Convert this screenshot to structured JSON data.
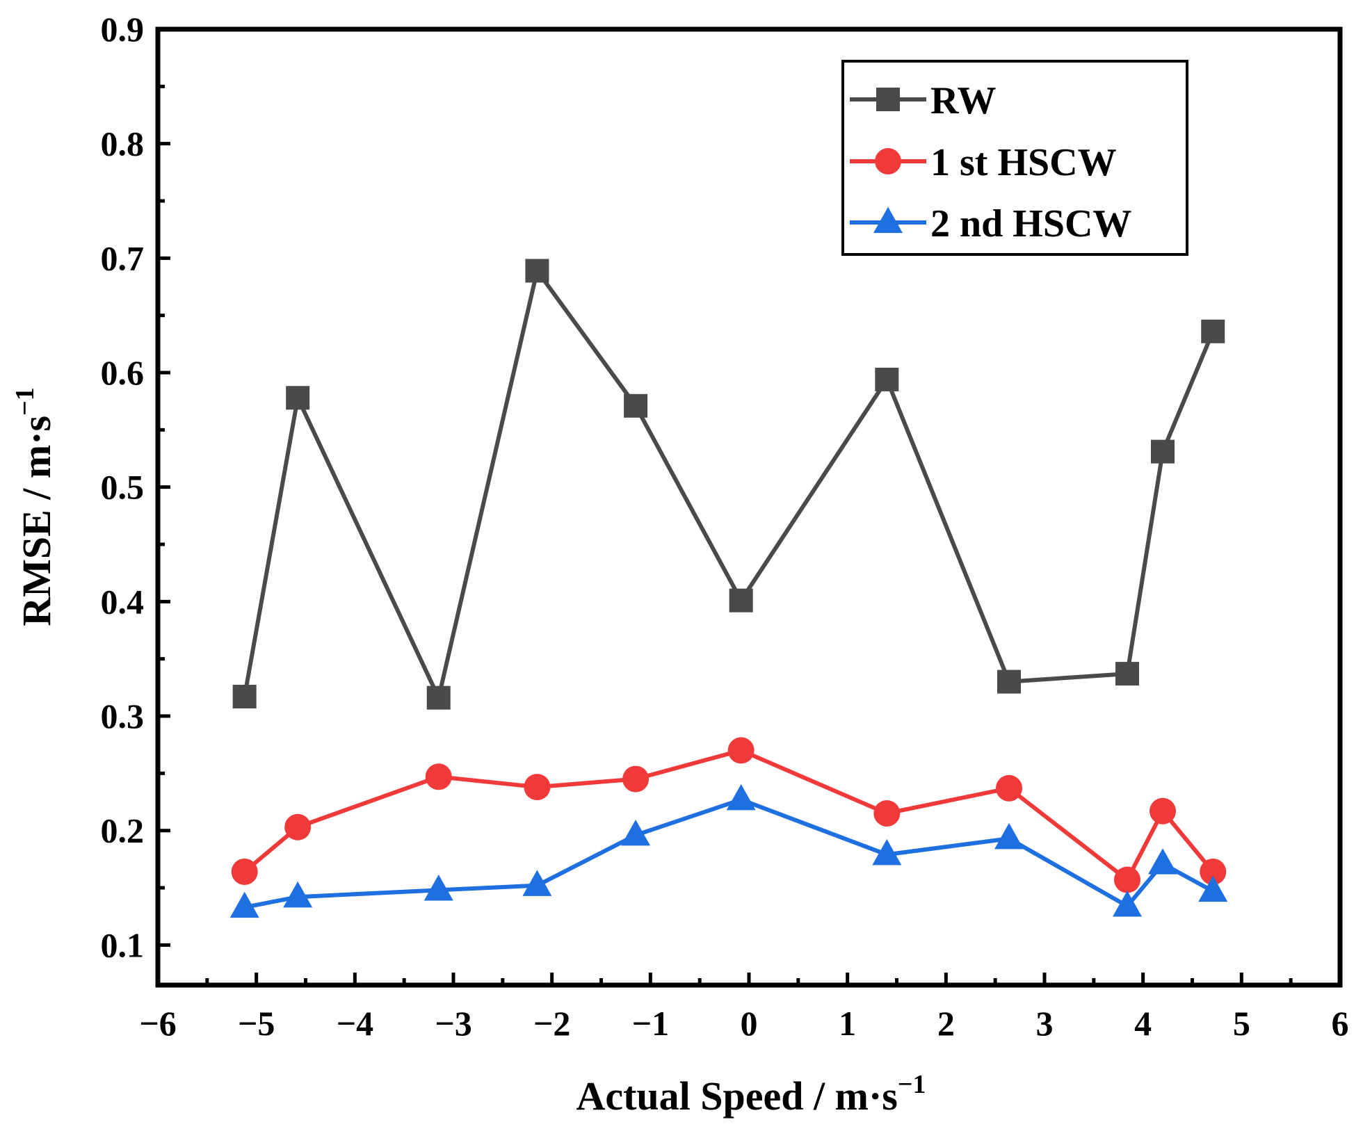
{
  "chart_data": {
    "type": "line",
    "title": "",
    "xlabel": "Actual Speed / m·s",
    "xlabel_sup": "−1",
    "ylabel": "RMSE / m·s",
    "ylabel_sup": "−1",
    "xlim": [
      -6,
      6
    ],
    "ylim": [
      0.065,
      0.9
    ],
    "xticks": [
      {
        "v": -6,
        "label": "−6"
      },
      {
        "v": -5,
        "label": "−5"
      },
      {
        "v": -4,
        "label": "−4"
      },
      {
        "v": -3,
        "label": "−3"
      },
      {
        "v": -2,
        "label": "−2"
      },
      {
        "v": -1,
        "label": "−1"
      },
      {
        "v": 0,
        "label": "0"
      },
      {
        "v": 1,
        "label": "1"
      },
      {
        "v": 2,
        "label": "2"
      },
      {
        "v": 3,
        "label": "3"
      },
      {
        "v": 4,
        "label": "4"
      },
      {
        "v": 5,
        "label": "5"
      },
      {
        "v": 6,
        "label": "6"
      }
    ],
    "yticks": [
      {
        "v": 0.1,
        "label": "0.1"
      },
      {
        "v": 0.2,
        "label": "0.2"
      },
      {
        "v": 0.3,
        "label": "0.3"
      },
      {
        "v": 0.4,
        "label": "0.4"
      },
      {
        "v": 0.5,
        "label": "0.5"
      },
      {
        "v": 0.6,
        "label": "0.6"
      },
      {
        "v": 0.7,
        "label": "0.7"
      },
      {
        "v": 0.8,
        "label": "0.8"
      },
      {
        "v": 0.9,
        "label": "0.9"
      }
    ],
    "x": [
      -5.12,
      -4.58,
      -3.15,
      -2.15,
      -1.15,
      -0.08,
      1.4,
      2.64,
      3.84,
      4.2,
      4.71
    ],
    "series": [
      {
        "name": "RW",
        "marker": "square",
        "color": "#4a4a4a",
        "values": [
          0.317,
          0.578,
          0.316,
          0.689,
          0.571,
          0.401,
          0.594,
          0.33,
          0.337,
          0.531,
          0.636
        ]
      },
      {
        "name": "1 st HSCW",
        "marker": "circle",
        "color": "#f03a3a",
        "values": [
          0.164,
          0.203,
          0.247,
          0.238,
          0.245,
          0.27,
          0.215,
          0.237,
          0.157,
          0.217,
          0.164
        ]
      },
      {
        "name": "2 nd HSCW",
        "marker": "triangle",
        "color": "#1e6fe0",
        "values": [
          0.133,
          0.142,
          0.148,
          0.152,
          0.196,
          0.227,
          0.179,
          0.193,
          0.134,
          0.171,
          0.147
        ]
      }
    ],
    "legend": {
      "placement": "top-right"
    },
    "grid": false
  }
}
